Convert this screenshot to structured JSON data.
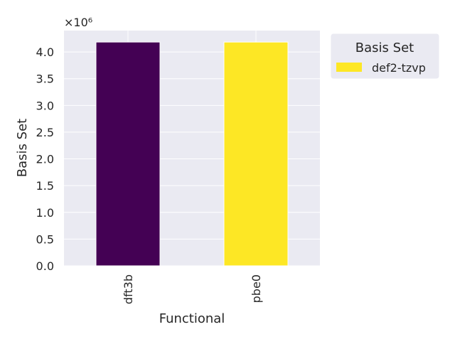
{
  "chart_data": {
    "type": "bar",
    "categories": [
      "dft3b",
      "pbe0"
    ],
    "values": [
      4185000,
      4185000
    ],
    "bar_colors": [
      "#440154",
      "#fde725"
    ],
    "xlabel": "Functional",
    "ylabel": "Basis Set",
    "ylim": [
      0,
      4400000
    ],
    "yticks": [
      0,
      0.5,
      1.0,
      1.5,
      2.0,
      2.5,
      3.0,
      3.5,
      4.0
    ],
    "y_tick_multiplier": 1000000,
    "offset_label": "×10⁶",
    "legend": {
      "title": "Basis Set",
      "entries": [
        {
          "label": "def2-tzvp",
          "color": "#fde725"
        }
      ],
      "placement": "outside-top-right"
    },
    "grid": true,
    "style": {
      "plot_background": "#eaeaf2",
      "grid_color": "#ffffff",
      "text_color": "#262626"
    }
  }
}
